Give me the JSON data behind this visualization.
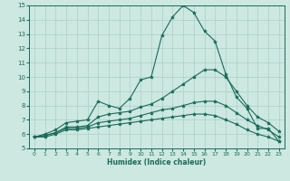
{
  "xlabel": "Humidex (Indice chaleur)",
  "bg_color": "#cce8e0",
  "grid_color": "#aacfc8",
  "line_color": "#1a6b5a",
  "xlim": [
    -0.5,
    23.5
  ],
  "ylim": [
    5,
    15
  ],
  "x": [
    0,
    1,
    2,
    3,
    4,
    5,
    6,
    7,
    8,
    9,
    10,
    11,
    12,
    13,
    14,
    15,
    16,
    17,
    18,
    19,
    20,
    21,
    22,
    23
  ],
  "series": [
    [
      5.8,
      6.0,
      6.3,
      6.8,
      6.9,
      7.0,
      8.3,
      8.0,
      7.8,
      8.5,
      9.8,
      10.0,
      12.9,
      14.2,
      15.0,
      14.5,
      13.2,
      12.5,
      10.2,
      8.6,
      7.8,
      6.4,
      6.4,
      5.5
    ],
    [
      5.8,
      5.9,
      6.1,
      6.5,
      6.5,
      6.6,
      7.2,
      7.4,
      7.5,
      7.6,
      7.9,
      8.1,
      8.5,
      9.0,
      9.5,
      10.0,
      10.5,
      10.5,
      10.0,
      9.0,
      8.0,
      7.2,
      6.8,
      6.2
    ],
    [
      5.8,
      5.9,
      6.1,
      6.4,
      6.4,
      6.5,
      6.8,
      6.9,
      7.0,
      7.1,
      7.3,
      7.5,
      7.7,
      7.8,
      8.0,
      8.2,
      8.3,
      8.3,
      8.0,
      7.5,
      7.0,
      6.6,
      6.3,
      5.8
    ],
    [
      5.8,
      5.8,
      6.0,
      6.3,
      6.3,
      6.4,
      6.5,
      6.6,
      6.7,
      6.8,
      6.9,
      7.0,
      7.1,
      7.2,
      7.3,
      7.4,
      7.4,
      7.3,
      7.0,
      6.7,
      6.3,
      6.0,
      5.8,
      5.5
    ]
  ]
}
